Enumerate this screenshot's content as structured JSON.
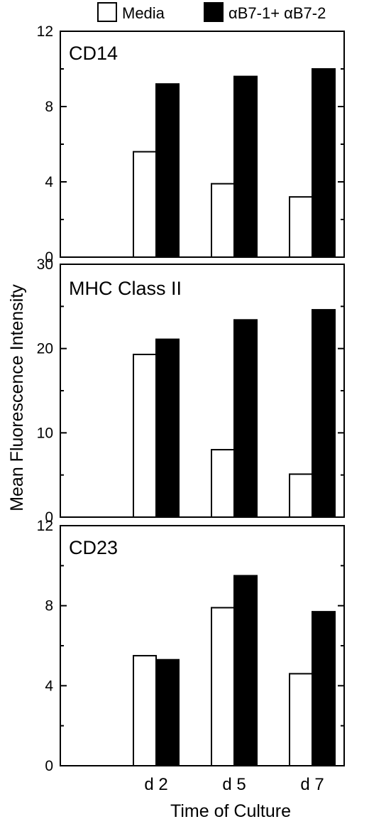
{
  "legend": {
    "position": "top",
    "items": [
      {
        "label": "Media",
        "color": "#ffffff"
      },
      {
        "label": "αB7-1+ αB7-2",
        "color": "#000000"
      }
    ]
  },
  "xlabel": "Time of Culture",
  "ylabel": "Mean Fluorescence Intensity",
  "chart_data": [
    {
      "type": "bar",
      "title": "CD14",
      "categories": [
        "d 2",
        "d 5",
        "d 7"
      ],
      "ylim": [
        0,
        12
      ],
      "yticks": [
        0,
        4,
        8,
        12
      ],
      "grid": false,
      "series": [
        {
          "name": "Media",
          "color": "#ffffff",
          "values": [
            5.6,
            3.9,
            3.2
          ]
        },
        {
          "name": "αB7-1+ αB7-2",
          "color": "#000000",
          "values": [
            9.2,
            9.6,
            10.0
          ]
        }
      ]
    },
    {
      "type": "bar",
      "title": "MHC Class II",
      "categories": [
        "d 2",
        "d 5",
        "d 7"
      ],
      "ylim": [
        0,
        30
      ],
      "yticks": [
        0,
        10,
        20,
        30
      ],
      "grid": false,
      "series": [
        {
          "name": "Media",
          "color": "#ffffff",
          "values": [
            19.3,
            8.0,
            5.1
          ]
        },
        {
          "name": "αB7-1+ αB7-2",
          "color": "#000000",
          "values": [
            21.1,
            23.4,
            24.6
          ]
        }
      ]
    },
    {
      "type": "bar",
      "title": "CD23",
      "categories": [
        "d 2",
        "d 5",
        "d 7"
      ],
      "ylim": [
        0,
        12
      ],
      "yticks": [
        0,
        4,
        8,
        12
      ],
      "grid": false,
      "series": [
        {
          "name": "Media",
          "color": "#ffffff",
          "values": [
            5.5,
            7.9,
            4.6
          ]
        },
        {
          "name": "αB7-1+ αB7-2",
          "color": "#000000",
          "values": [
            5.3,
            9.5,
            7.7
          ]
        }
      ]
    }
  ]
}
